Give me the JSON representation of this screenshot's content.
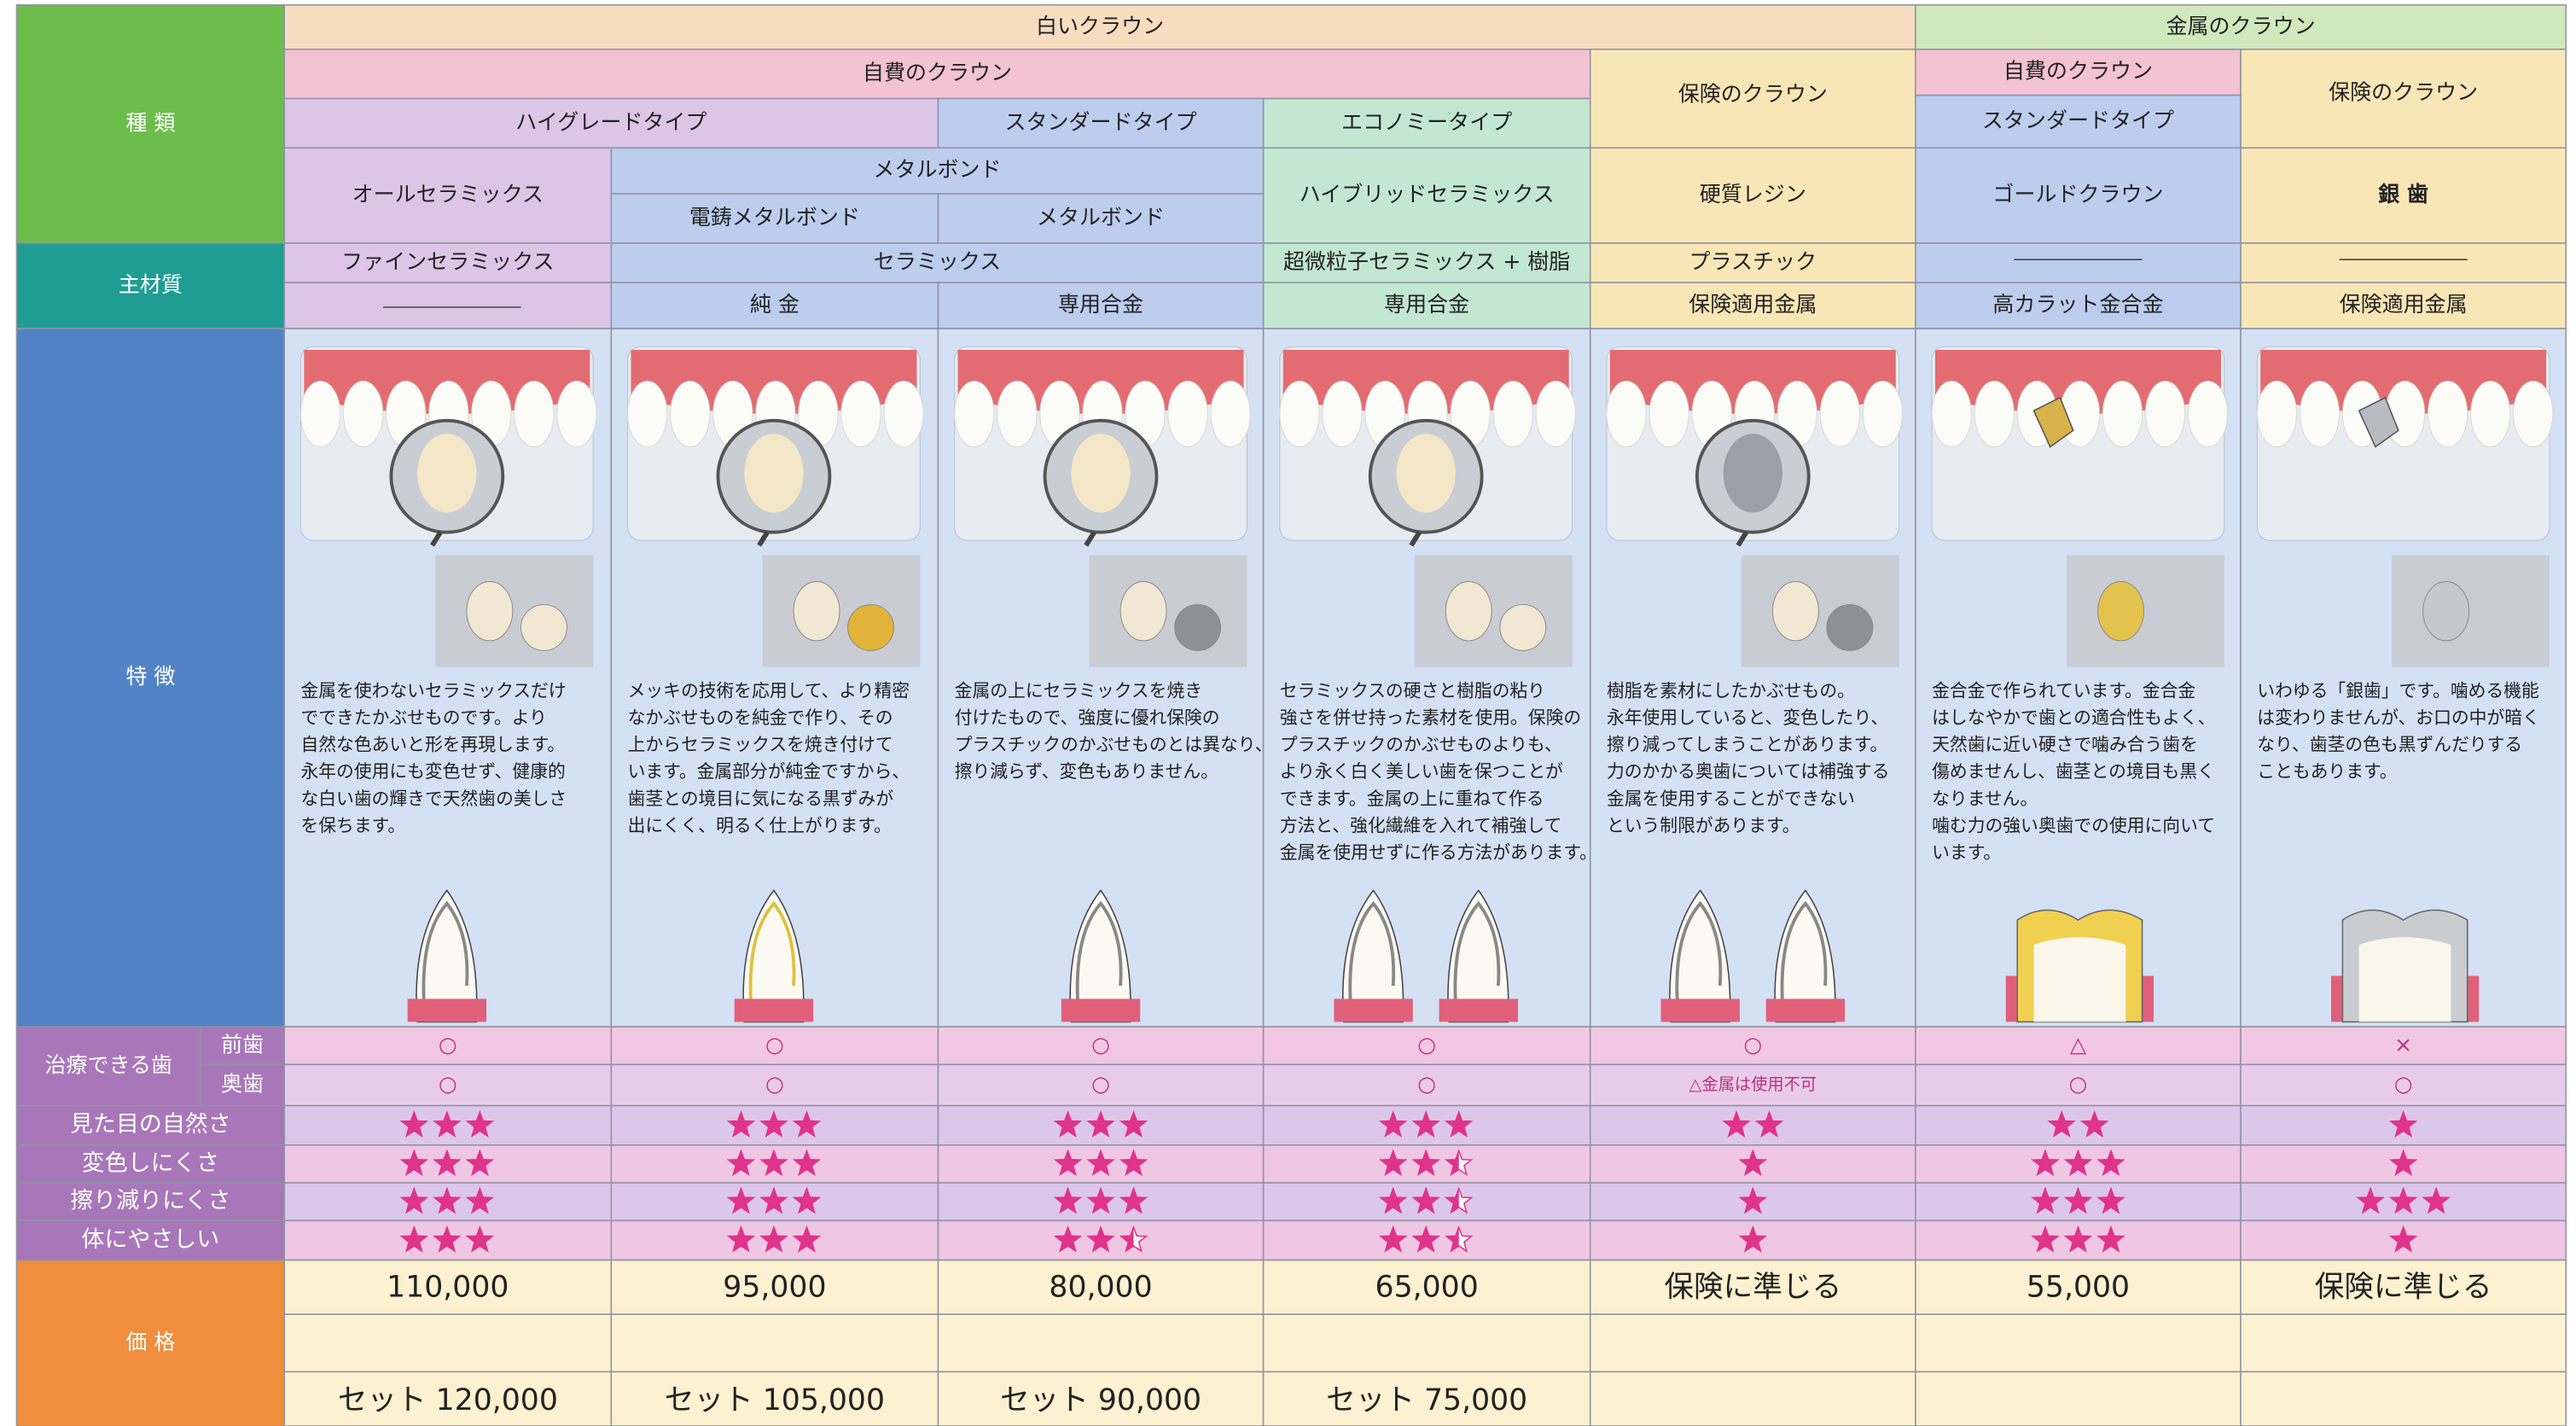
{
  "row_labels": {
    "type": "種 類",
    "material": "主材質",
    "features": "特 徴",
    "treatable": "治療できる歯",
    "front": "前歯",
    "back": "奥歯",
    "natural": "見た目の自然さ",
    "discolor": "変色しにくさ",
    "wear": "擦り減りにくさ",
    "gentle": "体にやさしい",
    "price": "価 格"
  },
  "groups": [
    "白いクラウン",
    "金属のクラウン"
  ],
  "payment": [
    "自費のクラウン",
    "保険のクラウン",
    "自費のクラウン",
    "保険のクラウン"
  ],
  "grades": [
    "ハイグレードタイプ",
    "スタンダードタイプ",
    "エコノミータイプ",
    "スタンダードタイプ"
  ],
  "metal_bond": "メタルボンド",
  "names": [
    "オールセラミックス",
    "電鋳メタルボンド",
    "メタルボンド",
    "ハイブリッドセラミックス",
    "硬質レジン",
    "ゴールドクラウン",
    "銀 歯"
  ],
  "materials_top": [
    "ファインセラミックス",
    "セラミックス",
    "超微粒子セラミックス + 樹脂",
    "プラスチック"
  ],
  "materials_bottom": [
    "純 金",
    "専用合金",
    "専用合金",
    "保険適用金属",
    "高カラット金合金",
    "保険適用金属"
  ],
  "descriptions": [
    [
      "金属を使わないセラミックスだけ",
      "でできたかぶせものです。より",
      "自然な色あいと形を再現します。",
      "永年の使用にも変色せず、健康的",
      "な白い歯の輝きで天然歯の美しさ",
      "を保ちます。"
    ],
    [
      "メッキの技術を応用して、より精密",
      "なかぶせものを純金で作り、その",
      "上からセラミックスを焼き付けて",
      "います。金属部分が純金ですから、",
      "歯茎との境目に気になる黒ずみが",
      "出にくく、明るく仕上がります。"
    ],
    [
      "金属の上にセラミックスを焼き",
      "付けたもので、強度に優れ保険の",
      "プラスチックのかぶせものとは異なり、",
      "擦り減らず、変色もありません。"
    ],
    [
      "セラミックスの硬さと樹脂の粘り",
      "強さを併せ持った素材を使用。保険の",
      "プラスチックのかぶせものよりも、",
      "より永く白く美しい歯を保つことが",
      "できます。金属の上に重ねて作る",
      "方法と、強化繊維を入れて補強して",
      "金属を使用せずに作る方法があります。"
    ],
    [
      "樹脂を素材にしたかぶせもの。",
      "永年使用していると、変色したり、",
      "擦り減ってしまうことがあります。",
      "力のかかる奥歯については補強する",
      "金属を使用することができない",
      "という制限があります。"
    ],
    [
      "金合金で作られています。金合金",
      "はしなやかで歯との適合性もよく、",
      "天然歯に近い硬さで噛み合う歯を",
      "傷めませんし、歯茎との境目も黒く",
      "なりません。",
      "噛む力の強い奥歯での使用に向いて",
      "います。"
    ],
    [
      "いわゆる「銀歯」です。噛める機能",
      "は変わりませんが、お口の中が暗く",
      "なり、歯茎の色も黒ずんだりする",
      "こともあります。"
    ]
  ],
  "front": [
    "○",
    "○",
    "○",
    "○",
    "○",
    "△",
    "×"
  ],
  "back": [
    "○",
    "○",
    "○",
    "○",
    "△金属は使用不可",
    "○",
    "○"
  ],
  "ratings": {
    "natural": [
      3,
      3,
      3,
      3,
      2,
      2,
      1
    ],
    "discolor": [
      3,
      3,
      3,
      2.5,
      1,
      3,
      1
    ],
    "wear": [
      3,
      3,
      3,
      2.5,
      1,
      3,
      3
    ],
    "gentle": [
      3,
      3,
      2.5,
      2.5,
      1,
      3,
      1
    ]
  },
  "prices": [
    "110,000",
    "95,000",
    "80,000",
    "65,000",
    "保険に準じる",
    "55,000",
    "保険に準じる"
  ],
  "set_prices": [
    "セット 120,000",
    "セット 105,000",
    "セット 90,000",
    "セット 75,000"
  ]
}
